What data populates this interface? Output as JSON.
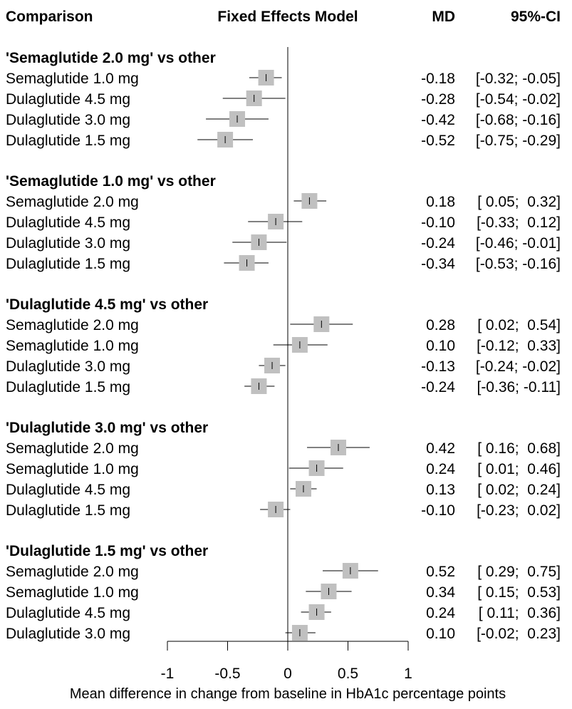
{
  "chart_data": {
    "type": "forest",
    "headers": {
      "comparison": "Comparison",
      "model": "Fixed Effects Model",
      "md": "MD",
      "ci": "95%-CI"
    },
    "xlabel": "Mean difference in change from baseline in HbA1c percentage points",
    "xlim": [
      -1,
      1
    ],
    "ticks": [
      -1,
      -0.5,
      0,
      0.5,
      1
    ],
    "tick_labels": [
      "-1",
      "-0.5",
      "0",
      "0.5",
      "1"
    ],
    "groups": [
      {
        "title": "'Semaglutide 2.0 mg' vs other",
        "rows": [
          {
            "label": "Semaglutide 1.0 mg",
            "md": -0.18,
            "lo": -0.32,
            "hi": -0.05,
            "md_text": "-0.18",
            "ci_text": "[-0.32; -0.05]"
          },
          {
            "label": "Dulaglutide 4.5 mg",
            "md": -0.28,
            "lo": -0.54,
            "hi": -0.02,
            "md_text": "-0.28",
            "ci_text": "[-0.54; -0.02]"
          },
          {
            "label": "Dulaglutide 3.0 mg",
            "md": -0.42,
            "lo": -0.68,
            "hi": -0.16,
            "md_text": "-0.42",
            "ci_text": "[-0.68; -0.16]"
          },
          {
            "label": "Dulaglutide 1.5 mg",
            "md": -0.52,
            "lo": -0.75,
            "hi": -0.29,
            "md_text": "-0.52",
            "ci_text": "[-0.75; -0.29]"
          }
        ]
      },
      {
        "title": "'Semaglutide 1.0 mg' vs other",
        "rows": [
          {
            "label": "Semaglutide 2.0 mg",
            "md": 0.18,
            "lo": 0.05,
            "hi": 0.32,
            "md_text": "0.18",
            "ci_text": "[ 0.05;  0.32]"
          },
          {
            "label": "Dulaglutide 4.5 mg",
            "md": -0.1,
            "lo": -0.33,
            "hi": 0.12,
            "md_text": "-0.10",
            "ci_text": "[-0.33;  0.12]"
          },
          {
            "label": "Dulaglutide 3.0 mg",
            "md": -0.24,
            "lo": -0.46,
            "hi": -0.01,
            "md_text": "-0.24",
            "ci_text": "[-0.46; -0.01]"
          },
          {
            "label": "Dulaglutide 1.5 mg",
            "md": -0.34,
            "lo": -0.53,
            "hi": -0.16,
            "md_text": "-0.34",
            "ci_text": "[-0.53; -0.16]"
          }
        ]
      },
      {
        "title": "'Dulaglutide 4.5 mg' vs other",
        "rows": [
          {
            "label": "Semaglutide 2.0 mg",
            "md": 0.28,
            "lo": 0.02,
            "hi": 0.54,
            "md_text": "0.28",
            "ci_text": "[ 0.02;  0.54]"
          },
          {
            "label": "Semaglutide 1.0 mg",
            "md": 0.1,
            "lo": -0.12,
            "hi": 0.33,
            "md_text": "0.10",
            "ci_text": "[-0.12;  0.33]"
          },
          {
            "label": "Dulaglutide 3.0 mg",
            "md": -0.13,
            "lo": -0.24,
            "hi": -0.02,
            "md_text": "-0.13",
            "ci_text": "[-0.24; -0.02]"
          },
          {
            "label": "Dulaglutide 1.5 mg",
            "md": -0.24,
            "lo": -0.36,
            "hi": -0.11,
            "md_text": "-0.24",
            "ci_text": "[-0.36; -0.11]"
          }
        ]
      },
      {
        "title": "'Dulaglutide 3.0 mg' vs other",
        "rows": [
          {
            "label": "Semaglutide 2.0 mg",
            "md": 0.42,
            "lo": 0.16,
            "hi": 0.68,
            "md_text": "0.42",
            "ci_text": "[ 0.16;  0.68]"
          },
          {
            "label": "Semaglutide 1.0 mg",
            "md": 0.24,
            "lo": 0.01,
            "hi": 0.46,
            "md_text": "0.24",
            "ci_text": "[ 0.01;  0.46]"
          },
          {
            "label": "Dulaglutide 4.5 mg",
            "md": 0.13,
            "lo": 0.02,
            "hi": 0.24,
            "md_text": "0.13",
            "ci_text": "[ 0.02;  0.24]"
          },
          {
            "label": "Dulaglutide 1.5 mg",
            "md": -0.1,
            "lo": -0.23,
            "hi": 0.02,
            "md_text": "-0.10",
            "ci_text": "[-0.23;  0.02]"
          }
        ]
      },
      {
        "title": "'Dulaglutide 1.5 mg' vs other",
        "rows": [
          {
            "label": "Semaglutide 2.0 mg",
            "md": 0.52,
            "lo": 0.29,
            "hi": 0.75,
            "md_text": "0.52",
            "ci_text": "[ 0.29;  0.75]"
          },
          {
            "label": "Semaglutide 1.0 mg",
            "md": 0.34,
            "lo": 0.15,
            "hi": 0.53,
            "md_text": "0.34",
            "ci_text": "[ 0.15;  0.53]"
          },
          {
            "label": "Dulaglutide 4.5 mg",
            "md": 0.24,
            "lo": 0.11,
            "hi": 0.36,
            "md_text": "0.24",
            "ci_text": "[ 0.11;  0.36]"
          },
          {
            "label": "Dulaglutide 3.0 mg",
            "md": 0.1,
            "lo": -0.02,
            "hi": 0.23,
            "md_text": "0.10",
            "ci_text": "[-0.02;  0.23]"
          }
        ]
      }
    ],
    "colors": {
      "square": "#c0c0c0",
      "line": "#000000"
    }
  }
}
